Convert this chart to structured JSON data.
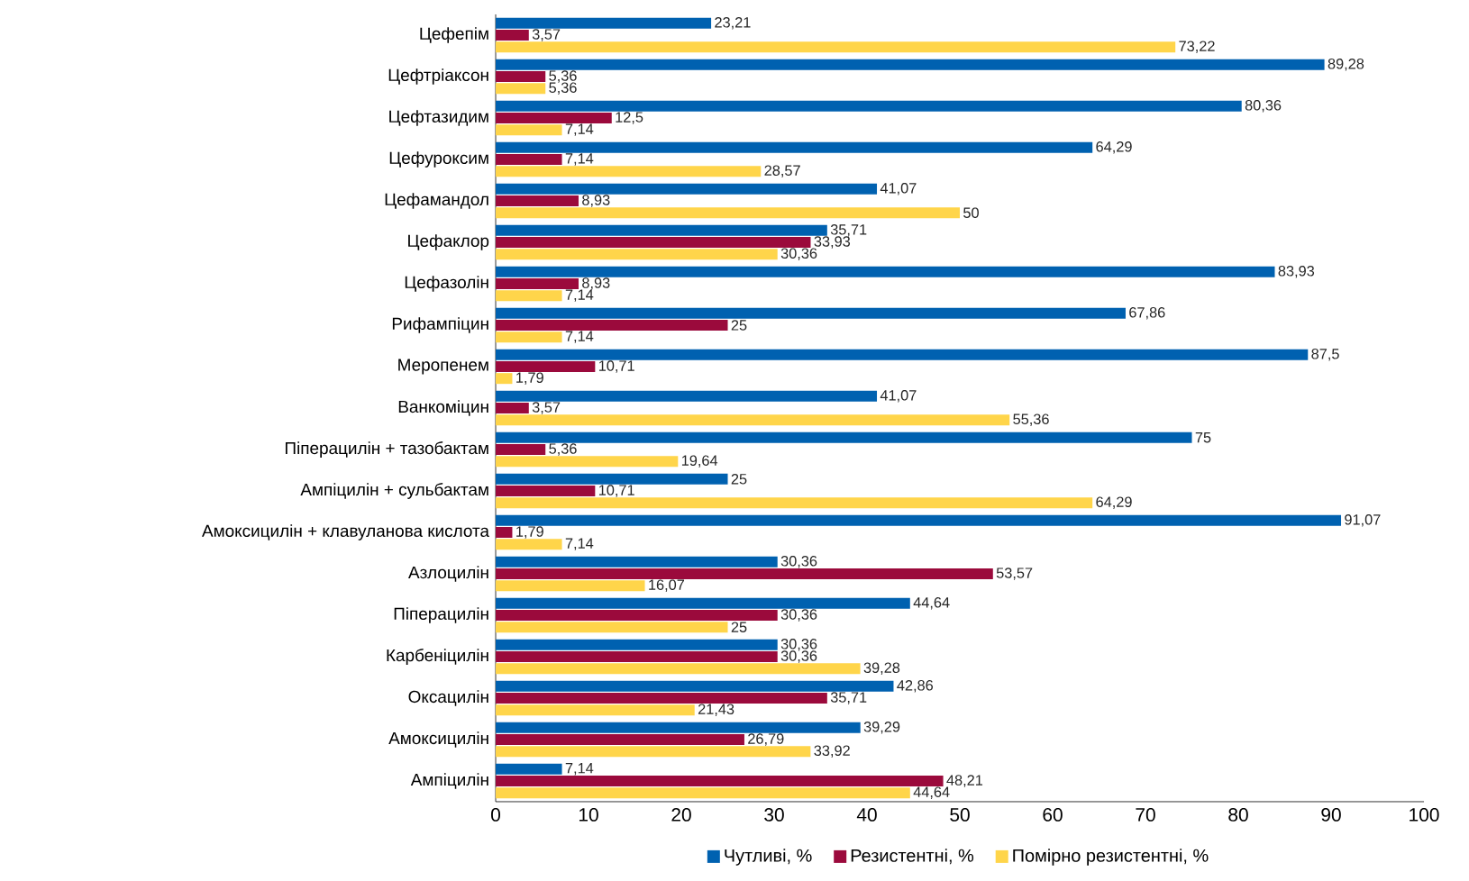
{
  "chart_data": {
    "type": "bar",
    "orientation": "horizontal",
    "categories": [
      "Цефепім",
      "Цефтріаксон",
      "Цефтазидим",
      "Цефуроксим",
      "Цефамандол",
      "Цефаклор",
      "Цефазолін",
      "Рифампіцин",
      "Меропенем",
      "Ванкоміцин",
      "Піперацилін + тазобактам",
      "Ампіцилін + сульбактам",
      "Амоксицилін + клавуланова кислота",
      "Азлоцилін",
      "Піперацилін",
      "Карбеніцилін",
      "Оксацилін",
      "Амоксицилін",
      "Ампіцилін"
    ],
    "series": [
      {
        "name": "Чутливі, %",
        "color": "#0061b0",
        "values": [
          23.21,
          89.28,
          80.36,
          64.29,
          41.07,
          35.71,
          83.93,
          67.86,
          87.5,
          41.07,
          75,
          25,
          91.07,
          30.36,
          44.64,
          30.36,
          42.86,
          39.29,
          7.14
        ],
        "value_labels": [
          "23,21",
          "89,28",
          "80,36",
          "64,29",
          "41,07",
          "35,71",
          "83,93",
          "67,86",
          "87,5",
          "41,07",
          "75",
          "25",
          "91,07",
          "30,36",
          "44,64",
          "30,36",
          "42,86",
          "39,29",
          "7,14"
        ]
      },
      {
        "name": "Резистентні, %",
        "color": "#9b0a3c",
        "values": [
          3.57,
          5.36,
          12.5,
          7.14,
          8.93,
          33.93,
          8.93,
          25,
          10.71,
          3.57,
          5.36,
          10.71,
          1.79,
          53.57,
          30.36,
          30.36,
          35.71,
          26.79,
          48.21
        ],
        "value_labels": [
          "3,57",
          "5,36",
          "12,5",
          "7,14",
          "8,93",
          "33,93",
          "8,93",
          "25",
          "10,71",
          "3,57",
          "5,36",
          "10,71",
          "1,79",
          "53,57",
          "30,36",
          "30,36",
          "35,71",
          "26,79",
          "48,21"
        ]
      },
      {
        "name": "Помірно резистентні, %",
        "color": "#ffd54a",
        "values": [
          73.22,
          5.36,
          7.14,
          28.57,
          50,
          30.36,
          7.14,
          7.14,
          1.79,
          55.36,
          19.64,
          64.29,
          7.14,
          16.07,
          25,
          39.28,
          21.43,
          33.92,
          44.64
        ],
        "value_labels": [
          "73,22",
          "5,36",
          "7,14",
          "28,57",
          "50",
          "30,36",
          "7,14",
          "7,14",
          "1,79",
          "55,36",
          "19,64",
          "64,29",
          "7,14",
          "16,07",
          "25",
          "39,28",
          "21,43",
          "33,92",
          "44,64"
        ]
      }
    ],
    "xlim": [
      0,
      100
    ],
    "xticks": [
      0,
      10,
      20,
      30,
      40,
      50,
      60,
      70,
      80,
      90,
      100
    ],
    "legend": "bottom",
    "grid": false
  }
}
